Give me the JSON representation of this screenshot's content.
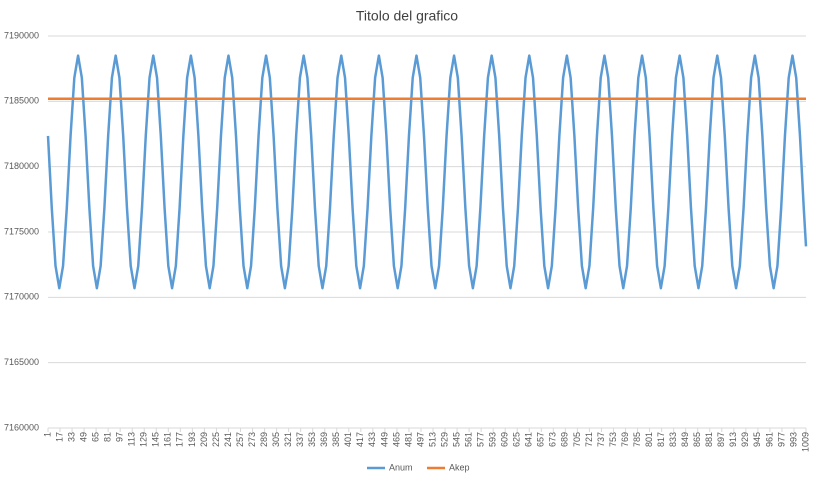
{
  "chart_data": {
    "type": "line",
    "title": "Titolo del grafico",
    "series": [
      {
        "name": "Anum",
        "color": "#5b9bd5",
        "x": [
          1,
          6,
          11,
          16,
          21,
          26,
          31,
          36,
          41,
          46,
          51,
          56,
          61,
          66,
          71,
          76,
          81,
          86,
          91,
          96,
          101,
          106,
          111,
          116,
          121,
          126,
          131,
          136,
          141,
          146,
          151,
          156,
          161,
          166,
          171,
          176,
          181,
          186,
          191,
          196,
          201,
          206,
          211,
          216,
          221,
          226,
          231,
          236,
          241,
          246,
          251,
          256,
          261,
          266,
          271,
          276,
          281,
          286,
          291,
          296,
          301,
          306,
          311,
          316,
          321,
          326,
          331,
          336,
          341,
          346,
          351,
          356,
          361,
          366,
          371,
          376,
          381,
          386,
          391,
          396,
          401,
          406,
          411,
          416,
          421,
          426,
          431,
          436,
          441,
          446,
          451,
          456,
          461,
          466,
          471,
          476,
          481,
          486,
          491,
          496,
          501,
          506,
          511,
          516,
          521,
          526,
          531,
          536,
          541,
          546,
          551,
          556,
          561,
          566,
          571,
          576,
          581,
          586,
          591,
          596,
          601,
          606,
          611,
          616,
          621,
          626,
          631,
          636,
          641,
          646,
          651,
          656,
          661,
          666,
          671,
          676,
          681,
          686,
          691,
          696,
          701,
          706,
          711,
          716,
          721,
          726,
          731,
          736,
          741,
          746,
          751,
          756,
          761,
          766,
          771,
          776,
          781,
          786,
          791,
          796,
          801,
          806,
          811,
          816,
          821,
          826,
          831,
          836,
          841,
          846,
          851,
          856,
          861,
          866,
          871,
          876,
          881,
          886,
          891,
          896,
          901,
          906,
          911,
          916,
          921,
          926,
          931,
          936,
          941,
          946,
          951,
          956,
          961,
          966,
          971,
          976,
          981,
          986,
          991,
          996,
          1001,
          1006,
          1009
        ],
        "values": [
          7182350,
          7176850,
          7172400,
          7170700,
          7172400,
          7176850,
          7182350,
          7186800,
          7188500,
          7186800,
          7182350,
          7176850,
          7172400,
          7170700,
          7172400,
          7176850,
          7182350,
          7186800,
          7188500,
          7186800,
          7182350,
          7176850,
          7172400,
          7170700,
          7172400,
          7176850,
          7182350,
          7186800,
          7188500,
          7186800,
          7182350,
          7176850,
          7172400,
          7170700,
          7172400,
          7176850,
          7182350,
          7186800,
          7188500,
          7186800,
          7182350,
          7176850,
          7172400,
          7170700,
          7172400,
          7176850,
          7182350,
          7186800,
          7188500,
          7186800,
          7182350,
          7176850,
          7172400,
          7170700,
          7172400,
          7176850,
          7182350,
          7186800,
          7188500,
          7186800,
          7182350,
          7176850,
          7172400,
          7170700,
          7172400,
          7176850,
          7182350,
          7186800,
          7188500,
          7186800,
          7182350,
          7176850,
          7172400,
          7170700,
          7172400,
          7176850,
          7182350,
          7186800,
          7188500,
          7186800,
          7182350,
          7176850,
          7172400,
          7170700,
          7172400,
          7176850,
          7182350,
          7186800,
          7188500,
          7186800,
          7182350,
          7176850,
          7172400,
          7170700,
          7172400,
          7176850,
          7182350,
          7186800,
          7188500,
          7186800,
          7182350,
          7176850,
          7172400,
          7170700,
          7172400,
          7176850,
          7182350,
          7186800,
          7188500,
          7186800,
          7182350,
          7176850,
          7172400,
          7170700,
          7172400,
          7176850,
          7182350,
          7186800,
          7188500,
          7186800,
          7182350,
          7176850,
          7172400,
          7170700,
          7172400,
          7176850,
          7182350,
          7186800,
          7188500,
          7186800,
          7182350,
          7176850,
          7172400,
          7170700,
          7172400,
          7176850,
          7182350,
          7186800,
          7188500,
          7186800,
          7182350,
          7176850,
          7172400,
          7170700,
          7172400,
          7176850,
          7182350,
          7186800,
          7188500,
          7186800,
          7182350,
          7176850,
          7172400,
          7170700,
          7172400,
          7176850,
          7182350,
          7186800,
          7188500,
          7186800,
          7182350,
          7176850,
          7172400,
          7170700,
          7172400,
          7176850,
          7182350,
          7186800,
          7188500,
          7186800,
          7182350,
          7176850,
          7172400,
          7170700,
          7172400,
          7176850,
          7182350,
          7186800,
          7188500,
          7186800,
          7182350,
          7176850,
          7172400,
          7170700,
          7172400,
          7176850,
          7182350,
          7186800,
          7188500,
          7186800,
          7182350,
          7176850,
          7172400,
          7170700,
          7172400,
          7176850,
          7182350,
          7186800,
          7188500,
          7186800,
          7182350,
          7176850,
          7173900
        ]
      },
      {
        "name": "Akep",
        "color": "#ed7d31",
        "x": [
          1,
          1009
        ],
        "values": [
          7185200,
          7185200
        ]
      }
    ],
    "xlim": [
      1,
      1009
    ],
    "xticks": [
      1,
      17,
      33,
      49,
      65,
      81,
      97,
      113,
      129,
      145,
      161,
      177,
      193,
      209,
      225,
      241,
      257,
      273,
      289,
      305,
      321,
      337,
      353,
      369,
      385,
      401,
      417,
      433,
      449,
      465,
      481,
      497,
      513,
      529,
      545,
      561,
      577,
      593,
      609,
      625,
      641,
      657,
      673,
      689,
      705,
      721,
      737,
      753,
      769,
      785,
      801,
      817,
      833,
      849,
      865,
      881,
      897,
      913,
      929,
      945,
      961,
      977,
      993,
      1009
    ],
    "ylim": [
      7160000,
      7190000
    ],
    "yticks": [
      7160000,
      7165000,
      7170000,
      7175000,
      7180000,
      7185000,
      7190000
    ],
    "grid": true,
    "legend": "bottom"
  }
}
